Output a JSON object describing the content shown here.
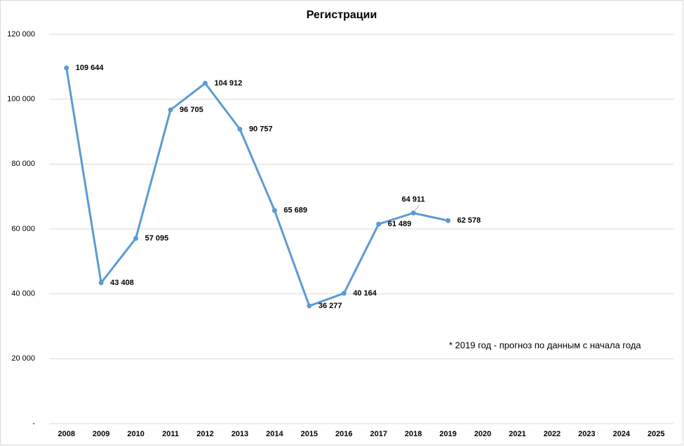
{
  "chart_data": {
    "type": "line",
    "title": "Регистрации",
    "categories": [
      "2008",
      "2009",
      "2010",
      "2011",
      "2012",
      "2013",
      "2014",
      "2015",
      "2016",
      "2017",
      "2018",
      "2019",
      "2020",
      "2021",
      "2022",
      "2023",
      "2024",
      "2025"
    ],
    "series": [
      {
        "name": "Регистрации",
        "color": "#5b9bd5",
        "values": [
          109644,
          43408,
          57095,
          96705,
          104912,
          90757,
          65689,
          36277,
          40164,
          61489,
          64911,
          62578,
          null,
          null,
          null,
          null,
          null,
          null
        ],
        "value_labels": [
          "109 644",
          "43 408",
          "57 095",
          "96 705",
          "104 912",
          "90 757",
          "65 689",
          "36 277",
          "40 164",
          "61 489",
          "64 911",
          "62 578",
          null,
          null,
          null,
          null,
          null,
          null
        ]
      }
    ],
    "ylim": [
      0,
      120000
    ],
    "yticks": [
      {
        "value": 0,
        "label": "-"
      },
      {
        "value": 20000,
        "label": "20 000"
      },
      {
        "value": 40000,
        "label": "40 000"
      },
      {
        "value": 60000,
        "label": "60 000"
      },
      {
        "value": 80000,
        "label": "80 000"
      },
      {
        "value": 100000,
        "label": "100 000"
      },
      {
        "value": 120000,
        "label": "120 000"
      }
    ],
    "grid": true,
    "annotation": "* 2019  год - прогноз по данным с начала года"
  }
}
